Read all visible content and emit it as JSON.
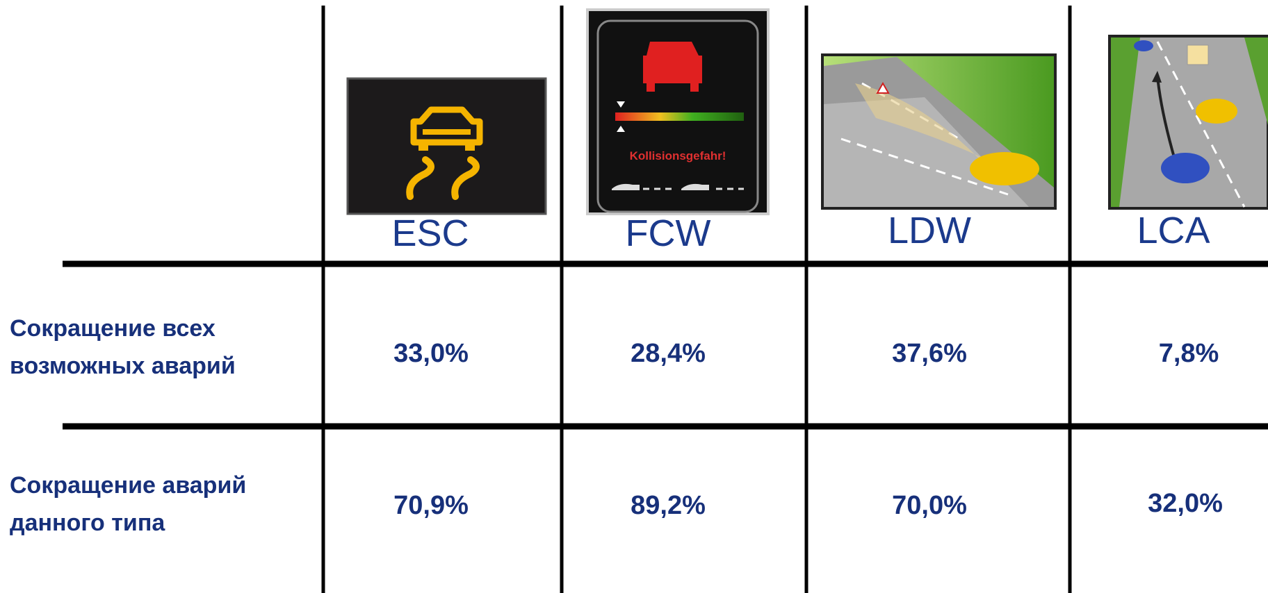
{
  "table": {
    "header": [
      "ESC",
      "FCW",
      "LDW",
      "LCA"
    ],
    "rows": [
      {
        "label": [
          "Сокращение всех",
          "возможных аварий"
        ],
        "values": [
          "33,0%",
          "28,4%",
          "37,6%",
          "7,8%"
        ]
      },
      {
        "label": [
          "Сокращение аварий",
          "данного типа"
        ],
        "values": [
          "70,9%",
          "89,2%",
          "70,0%",
          "32,0%"
        ]
      }
    ]
  },
  "images": {
    "fcw_warning": "Kollisionsgefahr!"
  }
}
